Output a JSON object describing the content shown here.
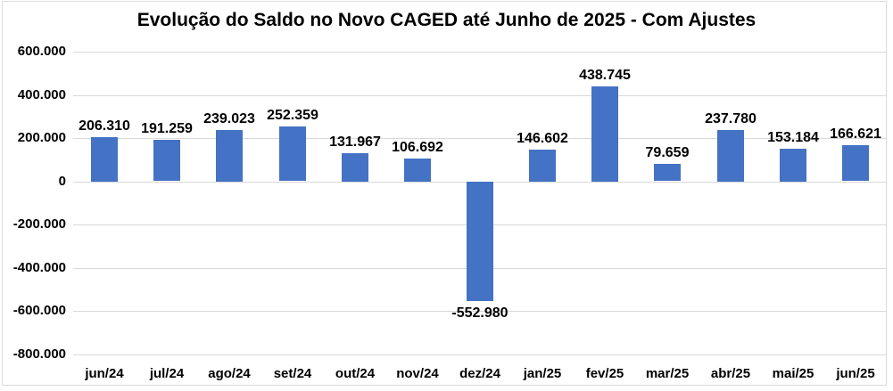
{
  "chart_data": {
    "type": "bar",
    "title": "Evolução do Saldo no Novo CAGED até Junho de 2025 - Com Ajustes",
    "categories": [
      "jun/24",
      "jul/24",
      "ago/24",
      "set/24",
      "out/24",
      "nov/24",
      "dez/24",
      "jan/25",
      "fev/25",
      "mar/25",
      "abr/25",
      "mai/25",
      "jun/25"
    ],
    "values": [
      206310,
      191259,
      239023,
      252359,
      131967,
      106692,
      -552980,
      146602,
      438745,
      79659,
      237780,
      153184,
      166621
    ],
    "data_labels": [
      "206.310",
      "191.259",
      "239.023",
      "252.359",
      "131.967",
      "106.692",
      "-552.980",
      "146.602",
      "438.745",
      "79.659",
      "237.780",
      "153.184",
      "166.621"
    ],
    "xlabel": "",
    "ylabel": "",
    "ylim": [
      -800000,
      600000
    ],
    "grid": true,
    "legend": "none",
    "y_axis": {
      "min": -800000,
      "max": 600000,
      "ticks": [
        {
          "value": 600000,
          "label": "600.000"
        },
        {
          "value": 400000,
          "label": "400.000"
        },
        {
          "value": 200000,
          "label": "200.000"
        },
        {
          "value": 0,
          "label": "0"
        },
        {
          "value": -200000,
          "label": "-200.000"
        },
        {
          "value": -400000,
          "label": "-400.000"
        },
        {
          "value": -600000,
          "label": "-600.000"
        },
        {
          "value": -800000,
          "label": "-800.000"
        }
      ]
    },
    "colors": {
      "bar": "#4472C4",
      "gridline": "#D9D9D9",
      "label_text": "#000000",
      "background": "#FFFFFF",
      "border": "#DCDCDC"
    }
  }
}
